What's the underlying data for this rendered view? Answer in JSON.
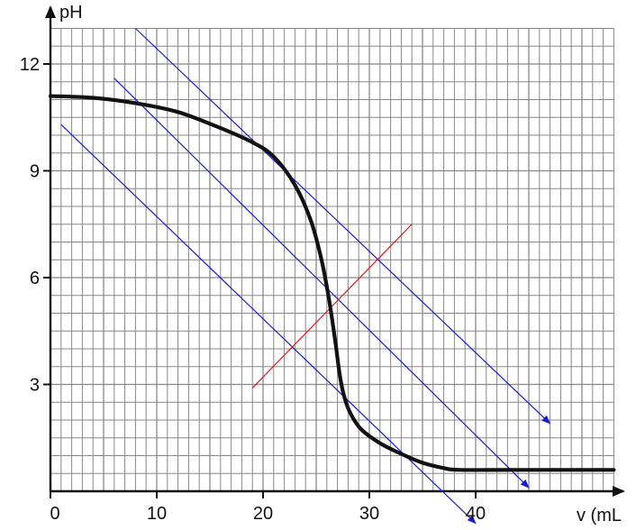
{
  "chart_data": {
    "type": "line",
    "title": "",
    "xlabel": "v (mL",
    "ylabel": "pH",
    "xlim": [
      0,
      53
    ],
    "ylim": [
      0,
      13
    ],
    "grid": true,
    "x_ticks": [
      {
        "value": 0,
        "label": "0"
      },
      {
        "value": 10,
        "label": "10"
      },
      {
        "value": 20,
        "label": "20"
      },
      {
        "value": 30,
        "label": "30"
      },
      {
        "value": 40,
        "label": "40"
      }
    ],
    "y_ticks": [
      {
        "value": 3,
        "label": "3"
      },
      {
        "value": 6,
        "label": "6"
      },
      {
        "value": 9,
        "label": "9"
      },
      {
        "value": 12,
        "label": "12"
      }
    ],
    "series": [
      {
        "color": "#111111",
        "x": [
          0,
          4,
          8,
          12,
          16,
          19,
          21,
          23,
          24.5,
          25.5,
          26.2,
          26.8,
          27.2,
          27.6,
          28.2,
          29.2,
          31,
          33,
          35,
          37,
          38.5,
          44,
          53
        ],
        "y": [
          11.1,
          11.05,
          10.9,
          10.65,
          10.2,
          9.8,
          9.4,
          8.6,
          7.6,
          6.5,
          5.4,
          4.2,
          3.3,
          2.7,
          2.2,
          1.75,
          1.35,
          1.05,
          0.8,
          0.65,
          0.6,
          0.6,
          0.6
        ]
      }
    ],
    "annotations": [
      {
        "kind": "tangent",
        "color": "#1a1ad6",
        "from": [
          8,
          13.0
        ],
        "to": [
          47,
          1.9
        ],
        "arrow": true
      },
      {
        "kind": "midline",
        "color": "#1a1ad6",
        "from": [
          6,
          11.6
        ],
        "to": [
          45,
          0.1
        ],
        "arrow": true
      },
      {
        "kind": "tangent",
        "color": "#1a1ad6",
        "from": [
          1,
          10.3
        ],
        "to": [
          40,
          -0.9
        ],
        "arrow": true
      },
      {
        "kind": "perpendicular",
        "color": "#e21818",
        "from": [
          19,
          2.9
        ],
        "to": [
          34,
          7.5
        ],
        "arrow": false
      }
    ],
    "colors": {
      "axis": "#111111",
      "grid": "#888888",
      "curve": "#111111"
    }
  }
}
